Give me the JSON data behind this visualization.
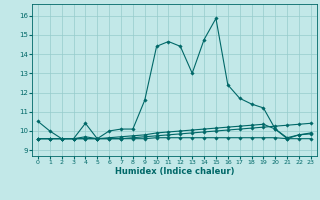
{
  "xlabel": "Humidex (Indice chaleur)",
  "background_color": "#c2e8e8",
  "grid_color": "#96cccc",
  "line_color": "#006868",
  "xlim": [
    -0.5,
    23.5
  ],
  "ylim": [
    8.7,
    16.6
  ],
  "yticks": [
    9,
    10,
    11,
    12,
    13,
    14,
    15,
    16
  ],
  "xticks": [
    0,
    1,
    2,
    3,
    4,
    5,
    6,
    7,
    8,
    9,
    10,
    11,
    12,
    13,
    14,
    15,
    16,
    17,
    18,
    19,
    20,
    21,
    22,
    23
  ],
  "series": [
    {
      "x": [
        0,
        1,
        2,
        3,
        4,
        5,
        6,
        7,
        8,
        9,
        10,
        11,
        12,
        13,
        14,
        15,
        16,
        17,
        18,
        19,
        20,
        21,
        22,
        23
      ],
      "y": [
        10.5,
        10.0,
        9.6,
        9.6,
        10.4,
        9.6,
        10.0,
        10.1,
        10.1,
        11.6,
        14.4,
        14.65,
        14.4,
        13.0,
        14.75,
        15.85,
        12.4,
        11.7,
        11.4,
        11.2,
        10.1,
        9.6,
        9.8,
        9.9
      ]
    },
    {
      "x": [
        0,
        1,
        2,
        3,
        4,
        5,
        6,
        7,
        8,
        9,
        10,
        11,
        12,
        13,
        14,
        15,
        16,
        17,
        18,
        19,
        20,
        21,
        22,
        23
      ],
      "y": [
        9.6,
        9.6,
        9.6,
        9.6,
        9.7,
        9.6,
        9.65,
        9.7,
        9.75,
        9.8,
        9.9,
        9.95,
        10.0,
        10.05,
        10.1,
        10.15,
        10.2,
        10.25,
        10.3,
        10.35,
        10.1,
        9.65,
        9.8,
        9.85
      ]
    },
    {
      "x": [
        0,
        1,
        2,
        3,
        4,
        5,
        6,
        7,
        8,
        9,
        10,
        11,
        12,
        13,
        14,
        15,
        16,
        17,
        18,
        19,
        20,
        21,
        22,
        23
      ],
      "y": [
        9.6,
        9.6,
        9.6,
        9.6,
        9.6,
        9.6,
        9.6,
        9.6,
        9.65,
        9.7,
        9.75,
        9.8,
        9.85,
        9.9,
        9.95,
        10.0,
        10.05,
        10.1,
        10.15,
        10.2,
        10.25,
        10.3,
        10.35,
        10.4
      ]
    },
    {
      "x": [
        0,
        1,
        2,
        3,
        4,
        5,
        6,
        7,
        8,
        9,
        10,
        11,
        12,
        13,
        14,
        15,
        16,
        17,
        18,
        19,
        20,
        21,
        22,
        23
      ],
      "y": [
        9.6,
        9.6,
        9.6,
        9.6,
        9.6,
        9.6,
        9.6,
        9.6,
        9.6,
        9.6,
        9.65,
        9.65,
        9.65,
        9.65,
        9.65,
        9.65,
        9.65,
        9.65,
        9.65,
        9.65,
        9.65,
        9.6,
        9.6,
        9.6
      ]
    }
  ]
}
